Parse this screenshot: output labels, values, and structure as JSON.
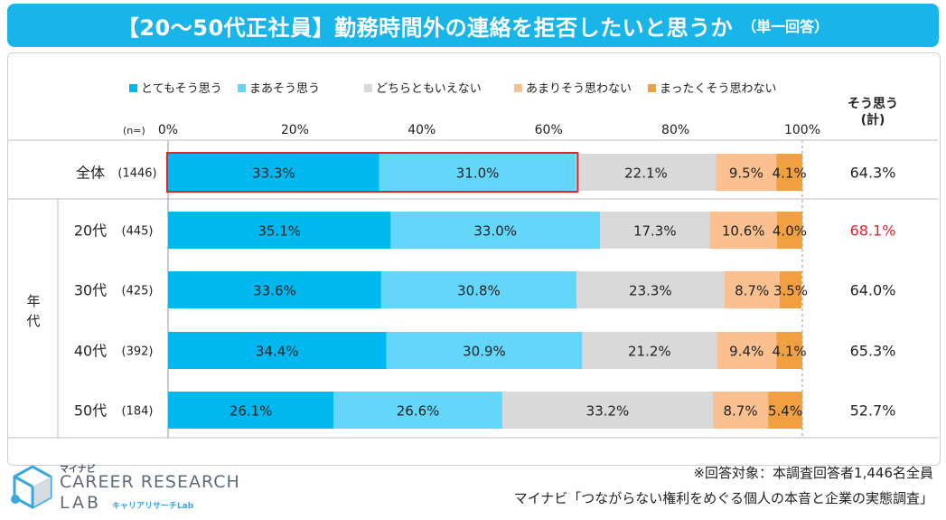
{
  "title": "【20～50代正社員】勤務時間外の連絡を拒否したいと思うか",
  "subtitle": "（単一回答）",
  "chart_data": {
    "type": "bar",
    "orientation": "horizontal-stacked-100",
    "legend": [
      "とてもそう思う",
      "まあそう思う",
      "どちらともいえない",
      "あまりそう思わない",
      "まったくそう思わない"
    ],
    "colors": [
      "#00b8f0",
      "#63d6f9",
      "#d9d9d9",
      "#fbc08f",
      "#f0a040"
    ],
    "x_ticks": [
      "0%",
      "20%",
      "40%",
      "60%",
      "80%",
      "100%"
    ],
    "n_label": "(n=)",
    "group_label": "年代",
    "total_header": "そう思う\n(計)",
    "rows": [
      {
        "label": "全体",
        "n": "(1446)",
        "values": [
          33.3,
          31.0,
          22.1,
          9.5,
          4.1
        ],
        "labels": [
          "33.3%",
          "31.0%",
          "22.1%",
          "9.5%",
          "4.1%"
        ],
        "total": "64.3%",
        "highlight": true
      },
      {
        "label": "20代",
        "n": "(445)",
        "values": [
          35.1,
          33.0,
          17.3,
          10.6,
          4.0
        ],
        "labels": [
          "35.1%",
          "33.0%",
          "17.3%",
          "10.6%",
          "4.0%"
        ],
        "total": "68.1%",
        "total_color": "#e8202a"
      },
      {
        "label": "30代",
        "n": "(425)",
        "values": [
          33.6,
          30.8,
          23.3,
          8.7,
          3.5
        ],
        "labels": [
          "33.6%",
          "30.8%",
          "23.3%",
          "8.7%",
          "3.5%"
        ],
        "total": "64.0%"
      },
      {
        "label": "40代",
        "n": "(392)",
        "values": [
          34.4,
          30.9,
          21.2,
          9.4,
          4.1
        ],
        "labels": [
          "34.4%",
          "30.9%",
          "21.2%",
          "9.4%",
          "4.1%"
        ],
        "total": "65.3%"
      },
      {
        "label": "50代",
        "n": "(184)",
        "values": [
          26.1,
          26.6,
          33.2,
          8.7,
          5.4
        ],
        "labels": [
          "26.1%",
          "26.6%",
          "33.2%",
          "8.7%",
          "5.4%"
        ],
        "total": "52.7%"
      }
    ]
  },
  "footer": {
    "note": "※回答対象：本調査回答者1,446名全員",
    "source": "マイナビ「つながらない権利をめぐる個人の本音と企業の実態調査」"
  },
  "logo": {
    "brand": "マイナビ",
    "line1": "CAREER RESEARCH",
    "line2": "LAB",
    "kana": "キャリアリサーチLab"
  }
}
